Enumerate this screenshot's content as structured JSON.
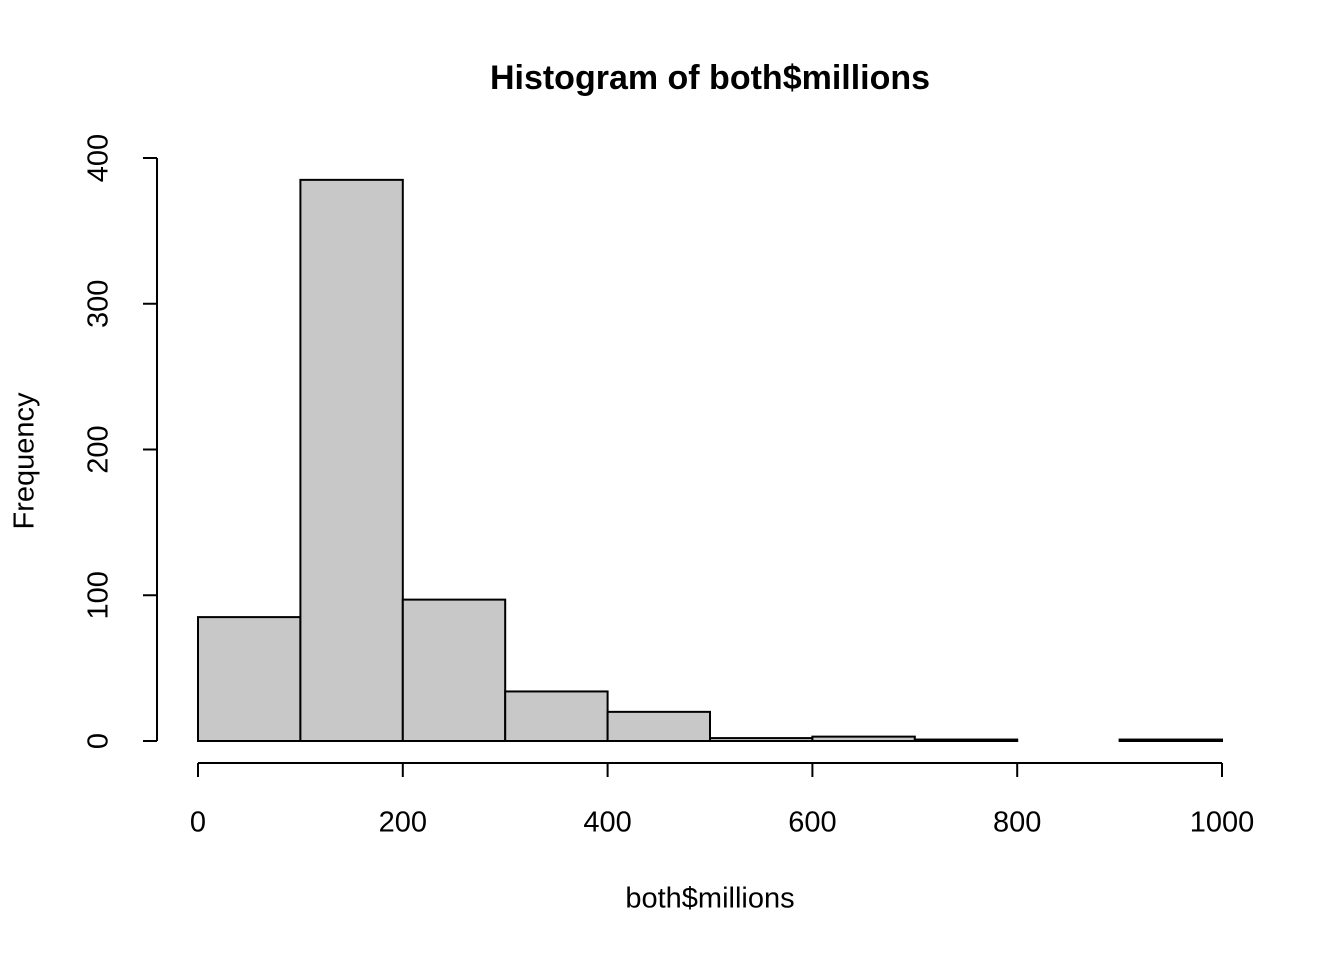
{
  "chart_data": {
    "type": "histogram",
    "title": "Histogram of both$millions",
    "x_label": "both$millions",
    "y_label": "Frequency",
    "bins": [
      0,
      100,
      200,
      300,
      400,
      500,
      600,
      700,
      800,
      900,
      1000
    ],
    "values": [
      85,
      385,
      97,
      34,
      20,
      2,
      3,
      1,
      0,
      1
    ],
    "color": "#c8c8c8",
    "xlim": [
      0,
      1000
    ],
    "xticks": [
      0,
      200,
      400,
      600,
      800,
      1000
    ],
    "ylim": [
      0,
      400
    ],
    "yticks": [
      0,
      100,
      200,
      300,
      400
    ],
    "grid": false
  }
}
